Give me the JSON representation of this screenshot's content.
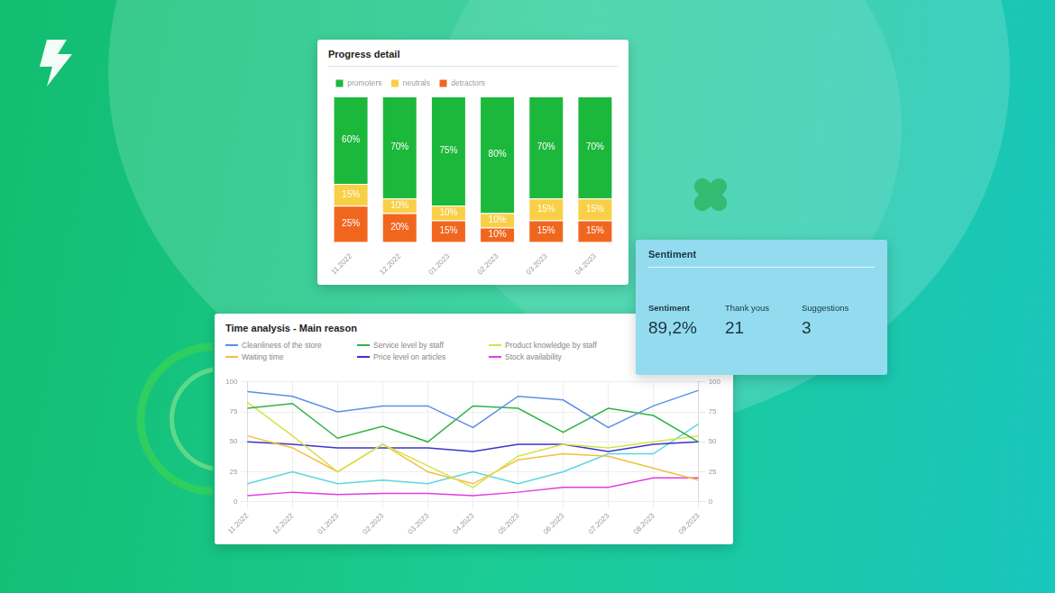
{
  "chart_data": [
    {
      "type": "bar",
      "title": "Progress detail",
      "stacked": true,
      "data_labels": true,
      "legend": "top left",
      "tick_labels": "x",
      "grid": false,
      "categories": [
        "11.2022",
        "12.2022",
        "01.2023",
        "02.2023",
        "03.2023",
        "04.2023"
      ],
      "ylim": [
        0,
        100
      ],
      "series": [
        {
          "name": "promoters",
          "color": "#1cb83c",
          "values": [
            60,
            70,
            75,
            80,
            70,
            70
          ],
          "value_labels": [
            "60%",
            "70%",
            "75%",
            "80%",
            "70%",
            "70%"
          ]
        },
        {
          "name": "neutrals",
          "color": "#f9cf45",
          "values": [
            15,
            10,
            10,
            10,
            15,
            15
          ],
          "value_labels": [
            "15%",
            "10%",
            "10%",
            "10%",
            "15%",
            "15%"
          ]
        },
        {
          "name": "detractors",
          "color": "#f1661f",
          "values": [
            25,
            20,
            15,
            10,
            15,
            15
          ],
          "value_labels": [
            "25%",
            "20%",
            "15%",
            "10%",
            "15%",
            "15%"
          ]
        }
      ]
    },
    {
      "type": "line",
      "title": "Time analysis - Main reason",
      "legend": "top left",
      "grid": true,
      "categories": [
        "11.2022",
        "12.2022",
        "01.2023",
        "02.2023",
        "03.2023",
        "04.2023",
        "05.2023",
        "06.2023",
        "07.2023",
        "08.2023",
        "09.2023"
      ],
      "ylim": [
        0,
        100
      ],
      "yticks": [
        0,
        25,
        50,
        75,
        100
      ],
      "y2lim": [
        0,
        100
      ],
      "y2ticks": [
        0,
        25,
        50,
        75,
        100
      ],
      "series": [
        {
          "name": "Cleanliness of the store",
          "color": "#5b8fe6",
          "values": [
            92,
            88,
            75,
            80,
            80,
            62,
            88,
            85,
            62,
            80,
            93
          ]
        },
        {
          "name": "Service level by staff",
          "color": "#2fb344",
          "values": [
            78,
            82,
            53,
            63,
            50,
            80,
            78,
            58,
            78,
            72,
            50
          ]
        },
        {
          "name": "Product knowledge by staff",
          "color": "#d6e24a",
          "values": [
            83,
            55,
            25,
            48,
            30,
            12,
            38,
            48,
            45,
            50,
            55
          ]
        },
        {
          "name": "Waiting time",
          "color": "#f3bf3f",
          "values": [
            55,
            45,
            25,
            48,
            25,
            15,
            35,
            40,
            38,
            28,
            18
          ]
        },
        {
          "name": "Price level on articles",
          "color": "#3b36c8",
          "values": [
            50,
            48,
            45,
            45,
            45,
            42,
            48,
            48,
            42,
            48,
            50
          ]
        },
        {
          "name": "Stock availability",
          "color": "#e03fe0",
          "values": [
            5,
            8,
            6,
            7,
            7,
            5,
            8,
            12,
            12,
            20,
            20
          ]
        },
        {
          "color": "#5cd6df",
          "axis": "y2",
          "values": [
            15,
            25,
            15,
            18,
            15,
            25,
            15,
            25,
            40,
            40,
            65
          ]
        }
      ]
    }
  ],
  "sentiment_card": {
    "title": "Sentiment",
    "metrics": [
      {
        "label": "Sentiment",
        "value": "89,2%"
      },
      {
        "label": "Thank yous",
        "value": "21"
      },
      {
        "label": "Suggestions",
        "value": "3"
      }
    ]
  }
}
